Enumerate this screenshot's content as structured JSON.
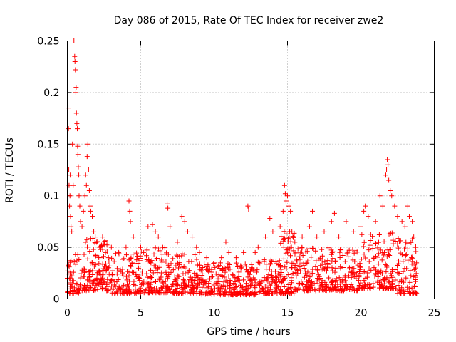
{
  "chart_data": {
    "type": "scatter",
    "title": "Day 086 of 2015, Rate Of TEC Index for receiver zwe2",
    "xlabel": "GPS time / hours",
    "ylabel": "ROTI / TECUs",
    "xlim": [
      0,
      25
    ],
    "ylim": [
      0,
      0.25
    ],
    "xticks": [
      0,
      5,
      10,
      15,
      20,
      25
    ],
    "xtick_labels": [
      "0",
      "5",
      "10",
      "15",
      "20",
      "25"
    ],
    "yticks": [
      0,
      0.05,
      0.1,
      0.15,
      0.2,
      0.25
    ],
    "ytick_labels": [
      "0",
      "0.05",
      "0.1",
      "0.15",
      "0.2",
      "0.25"
    ],
    "grid": true,
    "marker": "+",
    "color": "#ff0000",
    "series": [
      {
        "name": "ROTI",
        "points": [
          [
            0.0,
            0.02
          ],
          [
            0.05,
            0.185
          ],
          [
            0.08,
            0.165
          ],
          [
            0.1,
            0.125
          ],
          [
            0.12,
            0.11
          ],
          [
            0.15,
            0.09
          ],
          [
            0.18,
            0.1
          ],
          [
            0.2,
            0.12
          ],
          [
            0.22,
            0.08
          ],
          [
            0.25,
            0.07
          ],
          [
            0.3,
            0.065
          ],
          [
            0.35,
            0.15
          ],
          [
            0.4,
            0.11
          ],
          [
            0.45,
            0.25
          ],
          [
            0.5,
            0.235
          ],
          [
            0.52,
            0.23
          ],
          [
            0.55,
            0.222
          ],
          [
            0.58,
            0.2
          ],
          [
            0.6,
            0.205
          ],
          [
            0.62,
            0.18
          ],
          [
            0.65,
            0.17
          ],
          [
            0.68,
            0.165
          ],
          [
            0.7,
            0.148
          ],
          [
            0.72,
            0.14
          ],
          [
            0.75,
            0.128
          ],
          [
            0.78,
            0.12
          ],
          [
            0.8,
            0.1
          ],
          [
            0.85,
            0.09
          ],
          [
            0.9,
            0.075
          ],
          [
            1.0,
            0.07
          ],
          [
            1.1,
            0.085
          ],
          [
            1.2,
            0.1
          ],
          [
            1.25,
            0.12
          ],
          [
            1.3,
            0.11
          ],
          [
            1.35,
            0.138
          ],
          [
            1.4,
            0.15
          ],
          [
            1.45,
            0.125
          ],
          [
            1.5,
            0.105
          ],
          [
            1.55,
            0.09
          ],
          [
            1.6,
            0.085
          ],
          [
            1.7,
            0.08
          ],
          [
            1.8,
            0.065
          ],
          [
            1.9,
            0.06
          ],
          [
            2.0,
            0.055
          ],
          [
            2.2,
            0.05
          ],
          [
            2.4,
            0.06
          ],
          [
            2.6,
            0.045
          ],
          [
            2.8,
            0.04
          ],
          [
            3.0,
            0.05
          ],
          [
            3.5,
            0.045
          ],
          [
            4.0,
            0.05
          ],
          [
            4.2,
            0.095
          ],
          [
            4.25,
            0.085
          ],
          [
            4.3,
            0.075
          ],
          [
            4.5,
            0.06
          ],
          [
            5.0,
            0.05
          ],
          [
            5.2,
            0.045
          ],
          [
            5.5,
            0.07
          ],
          [
            5.8,
            0.072
          ],
          [
            6.0,
            0.065
          ],
          [
            6.2,
            0.06
          ],
          [
            6.5,
            0.05
          ],
          [
            6.8,
            0.092
          ],
          [
            6.85,
            0.088
          ],
          [
            7.0,
            0.07
          ],
          [
            7.5,
            0.055
          ],
          [
            7.8,
            0.08
          ],
          [
            8.0,
            0.075
          ],
          [
            8.2,
            0.065
          ],
          [
            8.5,
            0.06
          ],
          [
            8.8,
            0.05
          ],
          [
            9.0,
            0.045
          ],
          [
            9.5,
            0.04
          ],
          [
            10.0,
            0.035
          ],
          [
            10.5,
            0.04
          ],
          [
            10.8,
            0.055
          ],
          [
            11.0,
            0.045
          ],
          [
            11.5,
            0.04
          ],
          [
            12.0,
            0.045
          ],
          [
            12.3,
            0.09
          ],
          [
            12.35,
            0.087
          ],
          [
            12.8,
            0.045
          ],
          [
            13.0,
            0.05
          ],
          [
            13.5,
            0.06
          ],
          [
            13.8,
            0.078
          ],
          [
            14.0,
            0.065
          ],
          [
            14.5,
            0.07
          ],
          [
            14.7,
            0.085
          ],
          [
            14.8,
            0.11
          ],
          [
            14.85,
            0.102
          ],
          [
            14.9,
            0.095
          ],
          [
            15.0,
            0.1
          ],
          [
            15.1,
            0.09
          ],
          [
            15.2,
            0.085
          ],
          [
            15.3,
            0.065
          ],
          [
            15.5,
            0.055
          ],
          [
            16.0,
            0.06
          ],
          [
            16.5,
            0.07
          ],
          [
            16.7,
            0.085
          ],
          [
            17.0,
            0.06
          ],
          [
            17.5,
            0.065
          ],
          [
            18.0,
            0.075
          ],
          [
            18.2,
            0.083
          ],
          [
            18.5,
            0.06
          ],
          [
            19.0,
            0.075
          ],
          [
            19.5,
            0.065
          ],
          [
            20.0,
            0.07
          ],
          [
            20.2,
            0.085
          ],
          [
            20.3,
            0.09
          ],
          [
            20.5,
            0.08
          ],
          [
            21.0,
            0.075
          ],
          [
            21.3,
            0.1
          ],
          [
            21.5,
            0.09
          ],
          [
            21.7,
            0.12
          ],
          [
            21.75,
            0.125
          ],
          [
            21.8,
            0.135
          ],
          [
            21.85,
            0.13
          ],
          [
            21.9,
            0.115
          ],
          [
            22.0,
            0.105
          ],
          [
            22.1,
            0.1
          ],
          [
            22.3,
            0.09
          ],
          [
            22.5,
            0.08
          ],
          [
            22.8,
            0.075
          ],
          [
            23.0,
            0.07
          ],
          [
            23.2,
            0.09
          ],
          [
            23.3,
            0.08
          ],
          [
            23.5,
            0.075
          ],
          [
            23.6,
            0.06
          ],
          [
            23.7,
            0.05
          ]
        ]
      }
    ],
    "dense_band": {
      "description_free_note": "",
      "segments": [
        [
          0.0,
          1.0,
          0.005,
          0.045,
          60
        ],
        [
          1.0,
          3.0,
          0.008,
          0.06,
          140
        ],
        [
          3.0,
          5.0,
          0.005,
          0.045,
          120
        ],
        [
          5.0,
          7.0,
          0.006,
          0.05,
          120
        ],
        [
          7.0,
          9.0,
          0.005,
          0.045,
          120
        ],
        [
          9.0,
          11.0,
          0.004,
          0.035,
          120
        ],
        [
          11.0,
          13.0,
          0.004,
          0.035,
          120
        ],
        [
          13.0,
          14.5,
          0.005,
          0.04,
          90
        ],
        [
          14.5,
          15.5,
          0.005,
          0.07,
          90
        ],
        [
          15.5,
          18.0,
          0.008,
          0.05,
          150
        ],
        [
          18.0,
          20.0,
          0.008,
          0.05,
          120
        ],
        [
          20.0,
          22.5,
          0.01,
          0.065,
          150
        ],
        [
          22.5,
          23.8,
          0.005,
          0.06,
          90
        ]
      ]
    }
  }
}
